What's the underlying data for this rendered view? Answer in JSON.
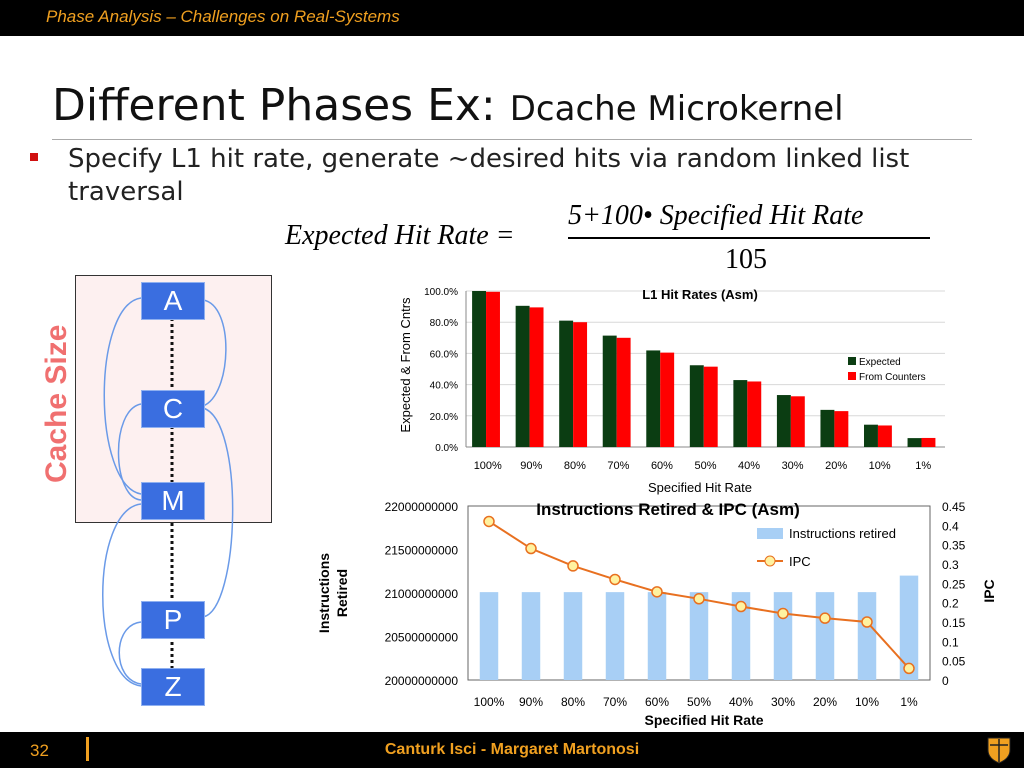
{
  "header": {
    "title": "Phase Analysis – Challenges on Real-Systems"
  },
  "slide": {
    "title_main": "Different Phases Ex: ",
    "title_sub": "Dcache Microkernel",
    "bullet": "Specify L1 hit rate, generate ~desired hits via random linked list traversal",
    "formula": {
      "lhs": "Expected   Hit   Rate =",
      "numerator": "5+100• Specified   Hit   Rate",
      "denominator": "105"
    }
  },
  "diagram": {
    "cache_label": "Cache Size",
    "nodes": [
      "A",
      "C",
      "M",
      "P",
      "Z"
    ]
  },
  "colors": {
    "bar_bg": "#000000",
    "accent": "#f0a020",
    "node": "#3a6ee0",
    "expected": "#0b3d12",
    "counters": "#ff0000",
    "retired": "#a8cff5",
    "ipc": "#e87020"
  },
  "chart_data": [
    {
      "type": "bar",
      "title": "L1 Hit Rates (Asm)",
      "xlabel": "Specified Hit Rate",
      "ylabel": "Expected & From Cntrs",
      "categories": [
        "100%",
        "90%",
        "80%",
        "70%",
        "60%",
        "50%",
        "40%",
        "30%",
        "20%",
        "10%",
        "1%"
      ],
      "yticks": [
        "0.0%",
        "20.0%",
        "40.0%",
        "60.0%",
        "80.0%",
        "100.0%"
      ],
      "ylim": [
        0,
        100
      ],
      "legend": "right",
      "series": [
        {
          "name": "Expected",
          "values": [
            100,
            90.5,
            81,
            71.4,
            61.9,
            52.4,
            42.9,
            33.3,
            23.8,
            14.3,
            5.7
          ]
        },
        {
          "name": "From Counters",
          "values": [
            99.5,
            89.5,
            80,
            70,
            60.5,
            51.5,
            42,
            32.5,
            23,
            13.8,
            5.8
          ]
        }
      ]
    },
    {
      "type": "bar",
      "title": "Instructions Retired & IPC (Asm)",
      "xlabel": "Specified Hit Rate",
      "ylabel": "Instructions Retired",
      "y2label": "IPC",
      "categories": [
        "100%",
        "90%",
        "80%",
        "70%",
        "60%",
        "50%",
        "40%",
        "30%",
        "20%",
        "10%",
        "1%"
      ],
      "yticks": [
        "20000000000",
        "20500000000",
        "21000000000",
        "21500000000",
        "22000000000"
      ],
      "ylim": [
        20000000000,
        22000000000
      ],
      "y2ticks": [
        "0",
        "0.05",
        "0.1",
        "0.15",
        "0.2",
        "0.25",
        "0.3",
        "0.35",
        "0.4",
        "0.45"
      ],
      "y2lim": [
        0,
        0.45
      ],
      "legend": "top-right",
      "series": [
        {
          "name": "Instructions retired",
          "type": "bar",
          "values": [
            21010000000,
            21010000000,
            21010000000,
            21010000000,
            21010000000,
            21010000000,
            21010000000,
            21010000000,
            21010000000,
            21010000000,
            21200000000
          ]
        },
        {
          "name": "IPC",
          "type": "line",
          "values": [
            0.41,
            0.34,
            0.295,
            0.26,
            0.228,
            0.21,
            0.19,
            0.172,
            0.16,
            0.15,
            0.03
          ]
        }
      ]
    }
  ],
  "footer": {
    "page": "32",
    "authors": "Canturk Isci - Margaret Martonosi"
  }
}
